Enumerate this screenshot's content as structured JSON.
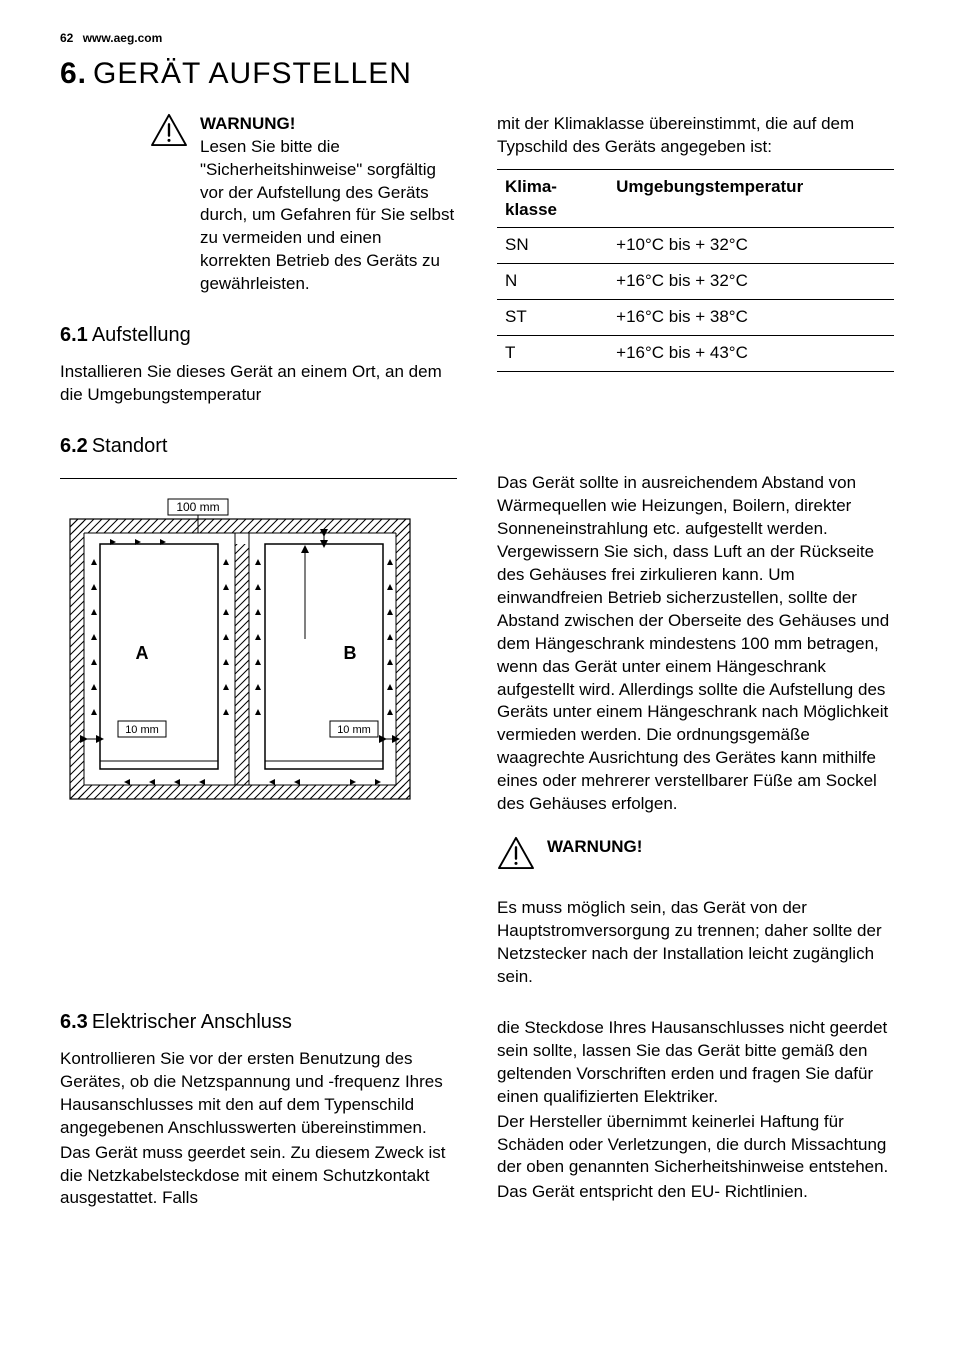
{
  "header": {
    "page_num": "62",
    "url": "www.aeg.com"
  },
  "section": {
    "num": "6.",
    "title": "GERÄT AUFSTELLEN"
  },
  "warning1": {
    "title": "WARNUNG!",
    "text": "Lesen Sie bitte die \"Sicherheitshinweise\" sorgfältig vor der Aufstellung des Geräts durch, um Gefahren für Sie selbst zu vermeiden und einen korrekten Betrieb des Geräts zu gewährleisten."
  },
  "sub61": {
    "num": "6.1",
    "title": "Aufstellung",
    "text_left": "Installieren Sie dieses Gerät an einem Ort, an dem die Umgebungstemperatur",
    "text_right": "mit der Klimaklasse übereinstimmt, die auf dem Typschild des Geräts angegeben ist:"
  },
  "climate_table": {
    "headers": [
      "Klimaklasse",
      "Umgebungstemperatur"
    ],
    "rows": [
      [
        "SN",
        "+10°C bis + 32°C"
      ],
      [
        "N",
        "+16°C bis + 32°C"
      ],
      [
        "ST",
        "+16°C bis + 38°C"
      ],
      [
        "T",
        "+16°C bis + 43°C"
      ]
    ]
  },
  "sub62": {
    "num": "6.2",
    "title": "Standort",
    "diagram": {
      "top_gap": "100 mm",
      "side_gap": "10 mm",
      "label_a": "A",
      "label_b": "B"
    },
    "text": "Das Gerät sollte in ausreichendem Abstand von Wärmequellen wie Heizungen, Boilern, direkter Sonneneinstrahlung etc. aufgestellt werden. Vergewissern Sie sich, dass Luft an der Rückseite des Gehäuses frei zirkulieren kann. Um einwandfreien Betrieb sicherzustellen, sollte der Abstand zwischen der Oberseite des Gehäuses und dem Hängeschrank mindestens 100 mm betragen, wenn das Gerät unter einem Hängeschrank aufgestellt wird. Allerdings sollte die Aufstellung des Geräts unter einem Hängeschrank nach Möglichkeit vermieden werden. Die ordnungsgemäße waagrechte Ausrichtung des Gerätes kann mithilfe eines oder mehrerer verstellbarer Füße am Sockel des Gehäuses erfolgen."
  },
  "warning2": {
    "title": "WARNUNG!",
    "text": "Es muss möglich sein, das Gerät von der Hauptstromversorgung zu trennen; daher sollte der Netzstecker nach der Installation leicht zugänglich sein."
  },
  "sub63": {
    "num": "6.3",
    "title": "Elektrischer Anschluss",
    "text_left1": "Kontrollieren Sie vor der ersten Benutzung des Gerätes, ob die Netzspannung und -frequenz Ihres Hausanschlusses mit den auf dem Typenschild angegebenen Anschlusswerten übereinstimmen.",
    "text_left2": "Das Gerät muss geerdet sein. Zu diesem Zweck ist die Netzkabelsteckdose mit einem Schutzkontakt ausgestattet. Falls",
    "text_right1": "die Steckdose Ihres Hausanschlusses nicht geerdet sein sollte, lassen Sie das Gerät bitte gemäß den geltenden Vorschriften erden und fragen Sie dafür einen qualifizierten Elektriker.",
    "text_right2": "Der Hersteller übernimmt keinerlei Haftung für Schäden oder Verletzungen, die durch Missachtung der oben genannten Sicherheitshinweise entstehen.",
    "text_right3": "Das Gerät entspricht den EU- Richtlinien."
  }
}
